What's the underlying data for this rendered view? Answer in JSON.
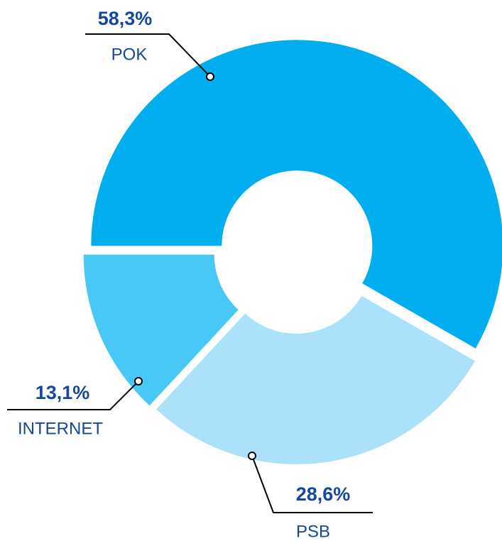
{
  "chart_data": {
    "type": "pie",
    "categories": [
      "POK",
      "PSB",
      "INTERNET"
    ],
    "values": [
      58.3,
      28.6,
      13.1
    ],
    "value_labels": [
      "58,3%",
      "28,6%",
      "13,1%"
    ],
    "colors": [
      "#00aeef",
      "#abe1fa",
      "#47c8f5"
    ]
  }
}
